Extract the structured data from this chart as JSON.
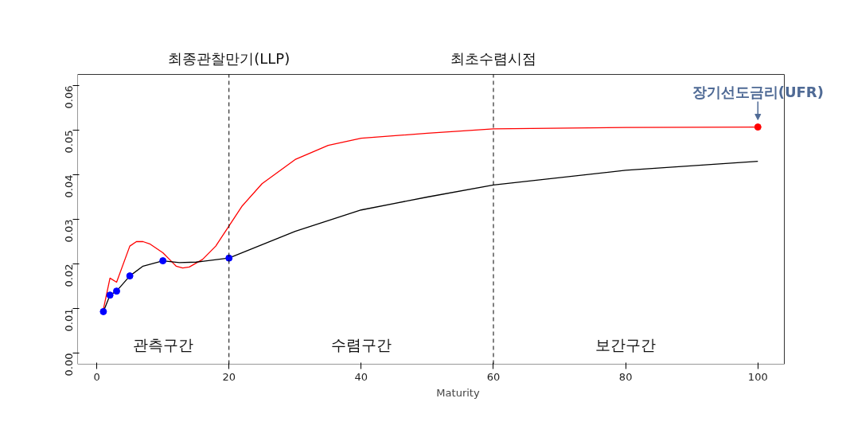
{
  "chart_data": {
    "type": "line",
    "xlabel": "Maturity",
    "xlim": [
      -2.9,
      104
    ],
    "ylim": [
      -0.0025,
      0.0625
    ],
    "xticks": [
      0,
      20,
      40,
      60,
      80,
      100
    ],
    "yticks": [
      {
        "value": 0,
        "label": "0.00"
      },
      {
        "value": 0.01,
        "label": "0.01"
      },
      {
        "value": 0.02,
        "label": "0.02"
      },
      {
        "value": 0.03,
        "label": "0.03"
      },
      {
        "value": 0.04,
        "label": "0.04"
      },
      {
        "value": 0.05,
        "label": "0.05"
      },
      {
        "value": 0.06,
        "label": "0.06"
      }
    ],
    "grid": false,
    "series": [
      {
        "color": "#ff0000",
        "x": [
          1,
          2,
          3,
          5,
          6,
          7,
          8,
          10,
          11,
          12,
          13,
          14,
          16,
          18,
          20,
          22,
          25,
          30,
          35,
          40,
          50,
          60,
          80,
          100
        ],
        "values": [
          0.0098,
          0.0168,
          0.0159,
          0.024,
          0.025,
          0.025,
          0.0245,
          0.0225,
          0.021,
          0.0195,
          0.0191,
          0.0193,
          0.021,
          0.024,
          0.0285,
          0.033,
          0.038,
          0.0434,
          0.0466,
          0.0482,
          0.0493,
          0.0503,
          0.0506,
          0.0507
        ]
      },
      {
        "color": "#000000",
        "x": [
          1,
          2,
          3,
          5,
          7,
          10,
          12.5,
          15,
          20,
          30,
          40,
          50,
          60,
          80,
          100
        ],
        "values": [
          0.0093,
          0.013,
          0.0139,
          0.0173,
          0.0195,
          0.0207,
          0.0203,
          0.0204,
          0.0213,
          0.0273,
          0.0321,
          0.035,
          0.0377,
          0.041,
          0.043
        ]
      },
      {
        "type": "scatter",
        "marker": "circle",
        "color": "#0000ff",
        "x": [
          1,
          2,
          3,
          5,
          10,
          20
        ],
        "values": [
          0.0093,
          0.013,
          0.0139,
          0.0173,
          0.0207,
          0.0213
        ]
      },
      {
        "type": "scatter",
        "marker": "circle",
        "color": "#ff0000",
        "x": [
          100
        ],
        "values": [
          0.0507
        ]
      }
    ],
    "ref_lines": [
      {
        "axis": "x",
        "value": 20,
        "label": "최종관찰만기(LLP)",
        "line_style": "dashed",
        "color": "#000000"
      },
      {
        "axis": "x",
        "value": 60,
        "label": "최초수렴시점",
        "line_style": "dashed",
        "color": "#000000"
      }
    ],
    "annotations": [
      "관측구간",
      "수렴구간",
      "보간구간",
      {
        "text": "장기선도금리(UFR)",
        "x": 100,
        "y": 0.0507
      }
    ]
  }
}
